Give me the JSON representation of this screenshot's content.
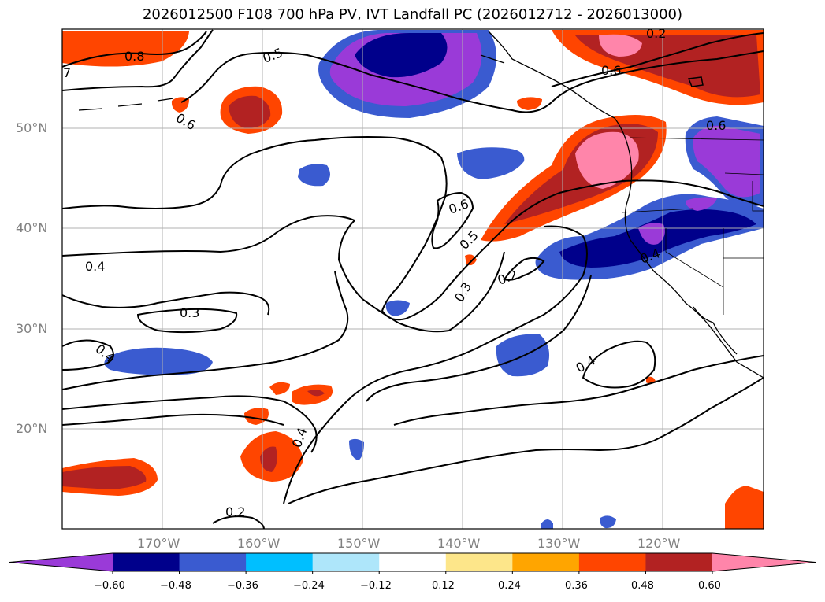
{
  "title": "2026012500 F108 700 hPa PV, IVT Landfall PC (2026012712 - 2026013000)",
  "lat_labels": [
    "50°N",
    "40°N",
    "30°N",
    "20°N"
  ],
  "lon_labels": [
    "170°W",
    "160°W",
    "150°W",
    "140°W",
    "130°W",
    "120°W"
  ],
  "colorbar": {
    "ticks": [
      "−0.60",
      "−0.48",
      "−0.36",
      "−0.24",
      "−0.12",
      "0.12",
      "0.24",
      "0.36",
      "0.48",
      "0.60"
    ],
    "colors": [
      "#9a3ad8",
      "#00008b",
      "#3a5bd0",
      "#00bfff",
      "#aee6fa",
      "#ffffff",
      "#fde68a",
      "#ffa500",
      "#ff4500",
      "#b22222",
      "#ff85aa",
      "#ff85aa"
    ]
  },
  "contour_labels": [
    "0.8",
    "0.5",
    "0.6",
    "0.6",
    "0.6",
    "0.6",
    "0.5",
    "0.4",
    "0.3",
    "0.4",
    "0.2",
    "0.4",
    "0.4",
    "0.2",
    "0.3",
    "0.4",
    "0.2",
    "7"
  ]
}
